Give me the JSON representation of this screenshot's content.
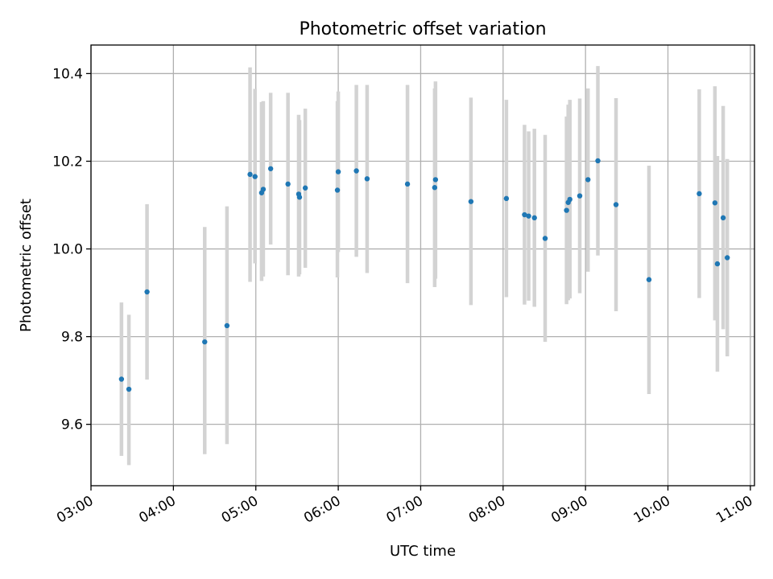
{
  "chart_data": {
    "type": "scatter",
    "title": "Photometric offset variation",
    "xlabel": "UTC time",
    "ylabel": "Photometric offset",
    "x_unit": "hours UTC",
    "xlim": [
      3.0,
      11.05
    ],
    "ylim": [
      9.46,
      10.465
    ],
    "x_ticks": [
      3,
      4,
      5,
      6,
      7,
      8,
      9,
      10,
      11
    ],
    "x_tick_labels": [
      "03:00",
      "04:00",
      "05:00",
      "06:00",
      "07:00",
      "08:00",
      "09:00",
      "10:00",
      "11:00"
    ],
    "y_ticks": [
      9.6,
      9.8,
      10.0,
      10.2,
      10.4
    ],
    "y_tick_labels": [
      "9.6",
      "9.8",
      "10.0",
      "10.2",
      "10.4"
    ],
    "grid": true,
    "colors": {
      "points": "#1f77b4",
      "error_bars": "#d3d3d3",
      "grid": "#b0b0b0"
    },
    "points": [
      {
        "x": 3.37,
        "y": 9.703,
        "low": 9.528,
        "high": 9.878
      },
      {
        "x": 3.46,
        "y": 9.68,
        "low": 9.507,
        "high": 9.85
      },
      {
        "x": 3.68,
        "y": 9.902,
        "low": 9.702,
        "high": 10.102
      },
      {
        "x": 4.38,
        "y": 9.788,
        "low": 9.532,
        "high": 10.05
      },
      {
        "x": 4.65,
        "y": 9.825,
        "low": 9.555,
        "high": 10.097
      },
      {
        "x": 4.93,
        "y": 10.17,
        "low": 9.925,
        "high": 10.414
      },
      {
        "x": 4.99,
        "y": 10.165,
        "low": 9.967,
        "high": 10.365
      },
      {
        "x": 5.07,
        "y": 10.128,
        "low": 9.927,
        "high": 10.335
      },
      {
        "x": 5.09,
        "y": 10.136,
        "low": 9.937,
        "high": 10.337
      },
      {
        "x": 5.18,
        "y": 10.183,
        "low": 10.01,
        "high": 10.356
      },
      {
        "x": 5.39,
        "y": 10.148,
        "low": 9.94,
        "high": 10.356
      },
      {
        "x": 5.52,
        "y": 10.125,
        "low": 9.937,
        "high": 10.306
      },
      {
        "x": 5.53,
        "y": 10.118,
        "low": 9.942,
        "high": 10.294
      },
      {
        "x": 5.6,
        "y": 10.139,
        "low": 9.957,
        "high": 10.32
      },
      {
        "x": 5.99,
        "y": 10.134,
        "low": 9.935,
        "high": 10.337
      },
      {
        "x": 6.0,
        "y": 10.176,
        "low": 9.993,
        "high": 10.359
      },
      {
        "x": 6.22,
        "y": 10.178,
        "low": 9.982,
        "high": 10.374
      },
      {
        "x": 6.35,
        "y": 10.16,
        "low": 9.945,
        "high": 10.374
      },
      {
        "x": 6.84,
        "y": 10.148,
        "low": 9.922,
        "high": 10.374
      },
      {
        "x": 7.17,
        "y": 10.14,
        "low": 9.913,
        "high": 10.366
      },
      {
        "x": 7.18,
        "y": 10.158,
        "low": 9.932,
        "high": 10.382
      },
      {
        "x": 7.61,
        "y": 10.108,
        "low": 9.872,
        "high": 10.345
      },
      {
        "x": 8.04,
        "y": 10.115,
        "low": 9.89,
        "high": 10.34
      },
      {
        "x": 8.26,
        "y": 10.078,
        "low": 9.873,
        "high": 10.283
      },
      {
        "x": 8.31,
        "y": 10.075,
        "low": 9.882,
        "high": 10.268
      },
      {
        "x": 8.38,
        "y": 10.071,
        "low": 9.868,
        "high": 10.274
      },
      {
        "x": 8.51,
        "y": 10.024,
        "low": 9.788,
        "high": 10.26
      },
      {
        "x": 8.77,
        "y": 10.088,
        "low": 9.874,
        "high": 10.302
      },
      {
        "x": 8.79,
        "y": 10.106,
        "low": 9.883,
        "high": 10.329
      },
      {
        "x": 8.81,
        "y": 10.113,
        "low": 9.887,
        "high": 10.34
      },
      {
        "x": 8.93,
        "y": 10.121,
        "low": 9.899,
        "high": 10.343
      },
      {
        "x": 9.03,
        "y": 10.158,
        "low": 9.948,
        "high": 10.366
      },
      {
        "x": 9.15,
        "y": 10.201,
        "low": 9.985,
        "high": 10.417
      },
      {
        "x": 9.37,
        "y": 10.101,
        "low": 9.858,
        "high": 10.344
      },
      {
        "x": 9.77,
        "y": 9.93,
        "low": 9.669,
        "high": 10.19
      },
      {
        "x": 10.38,
        "y": 10.126,
        "low": 9.888,
        "high": 10.364
      },
      {
        "x": 10.57,
        "y": 10.105,
        "low": 9.837,
        "high": 10.371
      },
      {
        "x": 10.6,
        "y": 9.966,
        "low": 9.72,
        "high": 10.212
      },
      {
        "x": 10.67,
        "y": 10.071,
        "low": 9.817,
        "high": 10.326
      },
      {
        "x": 10.72,
        "y": 9.98,
        "low": 9.755,
        "high": 10.205
      }
    ]
  }
}
